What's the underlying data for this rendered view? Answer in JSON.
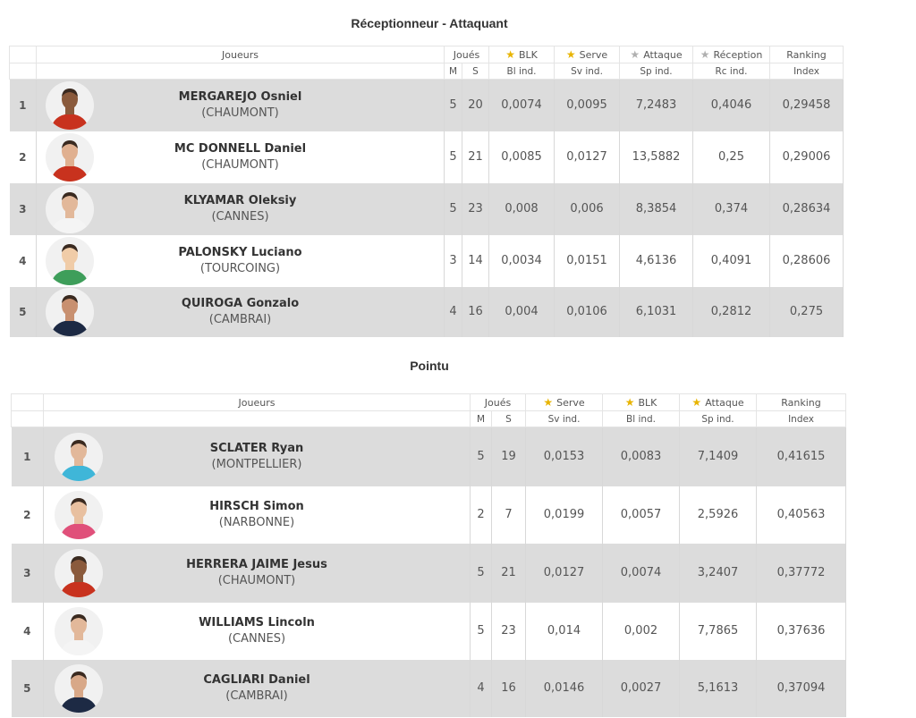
{
  "colors": {
    "row_odd": "#dcdcdc",
    "row_even": "#ffffff",
    "star_gold": "#e8b400",
    "star_grey": "#b0b0b0"
  },
  "tables": [
    {
      "title": "Réceptionneur - Attaquant",
      "header": {
        "players": "Joueurs",
        "played": "Joués",
        "m": "M",
        "s": "S",
        "stat_cols": [
          {
            "label": "BLK",
            "sub": "Bl ind.",
            "icon": "star-gold-icon"
          },
          {
            "label": "Serve",
            "sub": "Sv ind.",
            "icon": "star-gold-icon"
          },
          {
            "label": "Attaque",
            "sub": "Sp ind.",
            "icon": "star-grey-icon"
          },
          {
            "label": "Réception",
            "sub": "Rc ind.",
            "icon": "star-grey-icon"
          }
        ],
        "ranking": "Ranking",
        "index": "Index"
      },
      "rows": [
        {
          "rank": "1",
          "name": "MERGAREJO Osniel",
          "club": "(CHAUMONT)",
          "m": "5",
          "s": "20",
          "stats": [
            "0,0074",
            "0,0095",
            "7,2483",
            "0,4046"
          ],
          "index": "0,29458",
          "jersey": "#c8321e",
          "skin": "#8a5a3c"
        },
        {
          "rank": "2",
          "name": "MC DONNELL Daniel",
          "club": "(CHAUMONT)",
          "m": "5",
          "s": "21",
          "stats": [
            "0,0085",
            "0,0127",
            "13,5882",
            "0,25"
          ],
          "index": "0,29006",
          "jersey": "#c8321e",
          "skin": "#e0b090"
        },
        {
          "rank": "3",
          "name": "KLYAMAR Oleksiy",
          "club": "(CANNES)",
          "m": "5",
          "s": "23",
          "stats": [
            "0,008",
            "0,006",
            "8,3854",
            "0,374"
          ],
          "index": "0,28634",
          "jersey": "#f4f4f4",
          "skin": "#e2b89a"
        },
        {
          "rank": "4",
          "name": "PALONSKY Luciano",
          "club": "(TOURCOING)",
          "m": "3",
          "s": "14",
          "stats": [
            "0,0034",
            "0,0151",
            "4,6136",
            "0,4091"
          ],
          "index": "0,28606",
          "jersey": "#3e9e5a",
          "skin": "#f0cca8"
        },
        {
          "rank": "5",
          "name": "QUIROGA Gonzalo",
          "club": "(CAMBRAI)",
          "m": "4",
          "s": "16",
          "stats": [
            "0,004",
            "0,0106",
            "6,1031",
            "0,2812"
          ],
          "index": "0,275",
          "jersey": "#1d2a44",
          "skin": "#c89070"
        }
      ]
    },
    {
      "title": "Pointu",
      "header": {
        "players": "Joueurs",
        "played": "Joués",
        "m": "M",
        "s": "S",
        "stat_cols": [
          {
            "label": "Serve",
            "sub": "Sv ind.",
            "icon": "star-gold-icon"
          },
          {
            "label": "BLK",
            "sub": "Bl ind.",
            "icon": "star-gold-icon"
          },
          {
            "label": "Attaque",
            "sub": "Sp ind.",
            "icon": "star-gold-icon"
          }
        ],
        "ranking": "Ranking",
        "index": "Index"
      },
      "rows": [
        {
          "rank": "1",
          "name": "SCLATER Ryan",
          "club": "(MONTPELLIER)",
          "m": "5",
          "s": "19",
          "stats": [
            "0,0153",
            "0,0083",
            "7,1409"
          ],
          "index": "0,41615",
          "jersey": "#3fb6d8",
          "skin": "#e2b89a"
        },
        {
          "rank": "2",
          "name": "HIRSCH Simon",
          "club": "(NARBONNE)",
          "m": "2",
          "s": "7",
          "stats": [
            "0,0199",
            "0,0057",
            "2,5926"
          ],
          "index": "0,40563",
          "jersey": "#e0507a",
          "skin": "#e8c0a0"
        },
        {
          "rank": "3",
          "name": "HERRERA JAIME Jesus",
          "club": "(CHAUMONT)",
          "m": "5",
          "s": "21",
          "stats": [
            "0,0127",
            "0,0074",
            "3,2407"
          ],
          "index": "0,37772",
          "jersey": "#c8321e",
          "skin": "#8a5a3c"
        },
        {
          "rank": "4",
          "name": "WILLIAMS Lincoln",
          "club": "(CANNES)",
          "m": "5",
          "s": "23",
          "stats": [
            "0,014",
            "0,002",
            "7,7865"
          ],
          "index": "0,37636",
          "jersey": "#f4f4f4",
          "skin": "#e2b89a"
        },
        {
          "rank": "5",
          "name": "CAGLIARI Daniel",
          "club": "(CAMBRAI)",
          "m": "4",
          "s": "16",
          "stats": [
            "0,0146",
            "0,0027",
            "5,1613"
          ],
          "index": "0,37094",
          "jersey": "#1d2a44",
          "skin": "#d8a888"
        }
      ]
    }
  ]
}
